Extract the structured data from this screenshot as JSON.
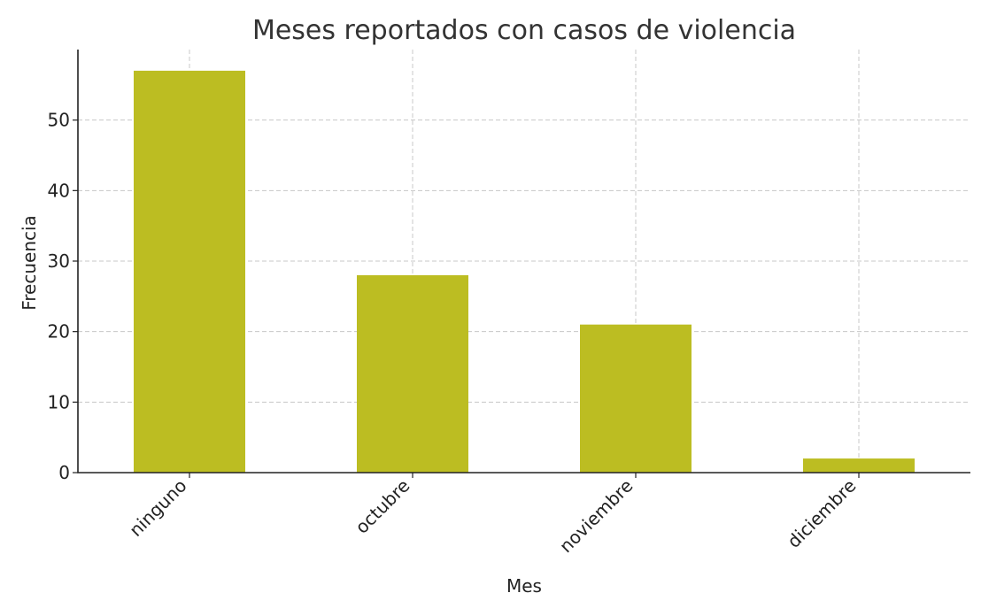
{
  "chart_data": {
    "type": "bar",
    "title": "Meses reportados con casos de violencia",
    "xlabel": "Mes",
    "ylabel": "Frecuencia",
    "categories": [
      "ninguno",
      "octubre",
      "noviembre",
      "diciembre"
    ],
    "values": [
      57,
      28,
      21,
      2
    ],
    "ylim": [
      0,
      60
    ],
    "yticks": [
      0,
      10,
      20,
      30,
      40,
      50
    ],
    "grid": true,
    "bar_color": "#bcbd22"
  }
}
